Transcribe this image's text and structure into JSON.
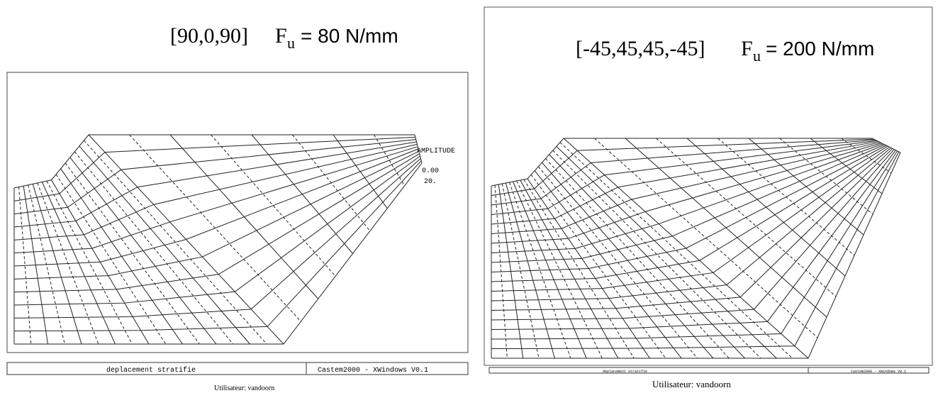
{
  "panels": [
    {
      "layup": "[90,0,90]",
      "force_symbol": "F",
      "force_subscript": "u",
      "force_value": "= 80 N/mm",
      "legend_title": "AMPLITUDE",
      "legend_values": [
        "0.00",
        "20."
      ],
      "footer_left": "deplacement stratifie",
      "footer_right": "Castem2000 - XWindows V0.1",
      "user": "Utilisateur: vandoorn"
    },
    {
      "layup": "[-45,45,45,-45]",
      "force_symbol": "F",
      "force_subscript": "u",
      "force_value": "= 200 N/mm",
      "footer_left": "deplacement stratifie",
      "footer_right": "Castem2000 - XWindows V0.1",
      "user": "Utilisateur: vandoorn"
    }
  ]
}
